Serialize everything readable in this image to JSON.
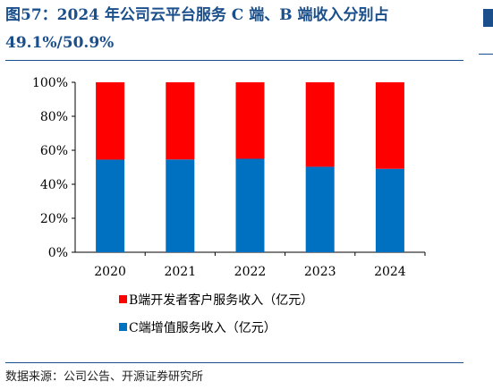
{
  "title": "图57：2024 年公司云平台服务 C 端、B 端收入分别占 49.1%/50.9%",
  "source": "数据来源：公司公告、开源证券研究所",
  "colors": {
    "title": "#1a4f8c",
    "b_series": "#ff0000",
    "c_series": "#0070c0"
  },
  "chart_data": {
    "type": "bar",
    "stacked": true,
    "percent": true,
    "categories": [
      "2020",
      "2021",
      "2022",
      "2023",
      "2024"
    ],
    "series": [
      {
        "name": "C端增值服务收入（亿元）",
        "values": [
          54.5,
          54.6,
          55.0,
          50.3,
          49.1
        ]
      },
      {
        "name": "B端开发者客户服务收入（亿元）",
        "values": [
          45.5,
          45.4,
          45.0,
          49.7,
          50.9
        ]
      }
    ],
    "ylim": [
      0,
      100
    ],
    "yticks": [
      "0%",
      "20%",
      "40%",
      "60%",
      "80%",
      "100%"
    ],
    "grid": false,
    "legend": "bottom"
  }
}
